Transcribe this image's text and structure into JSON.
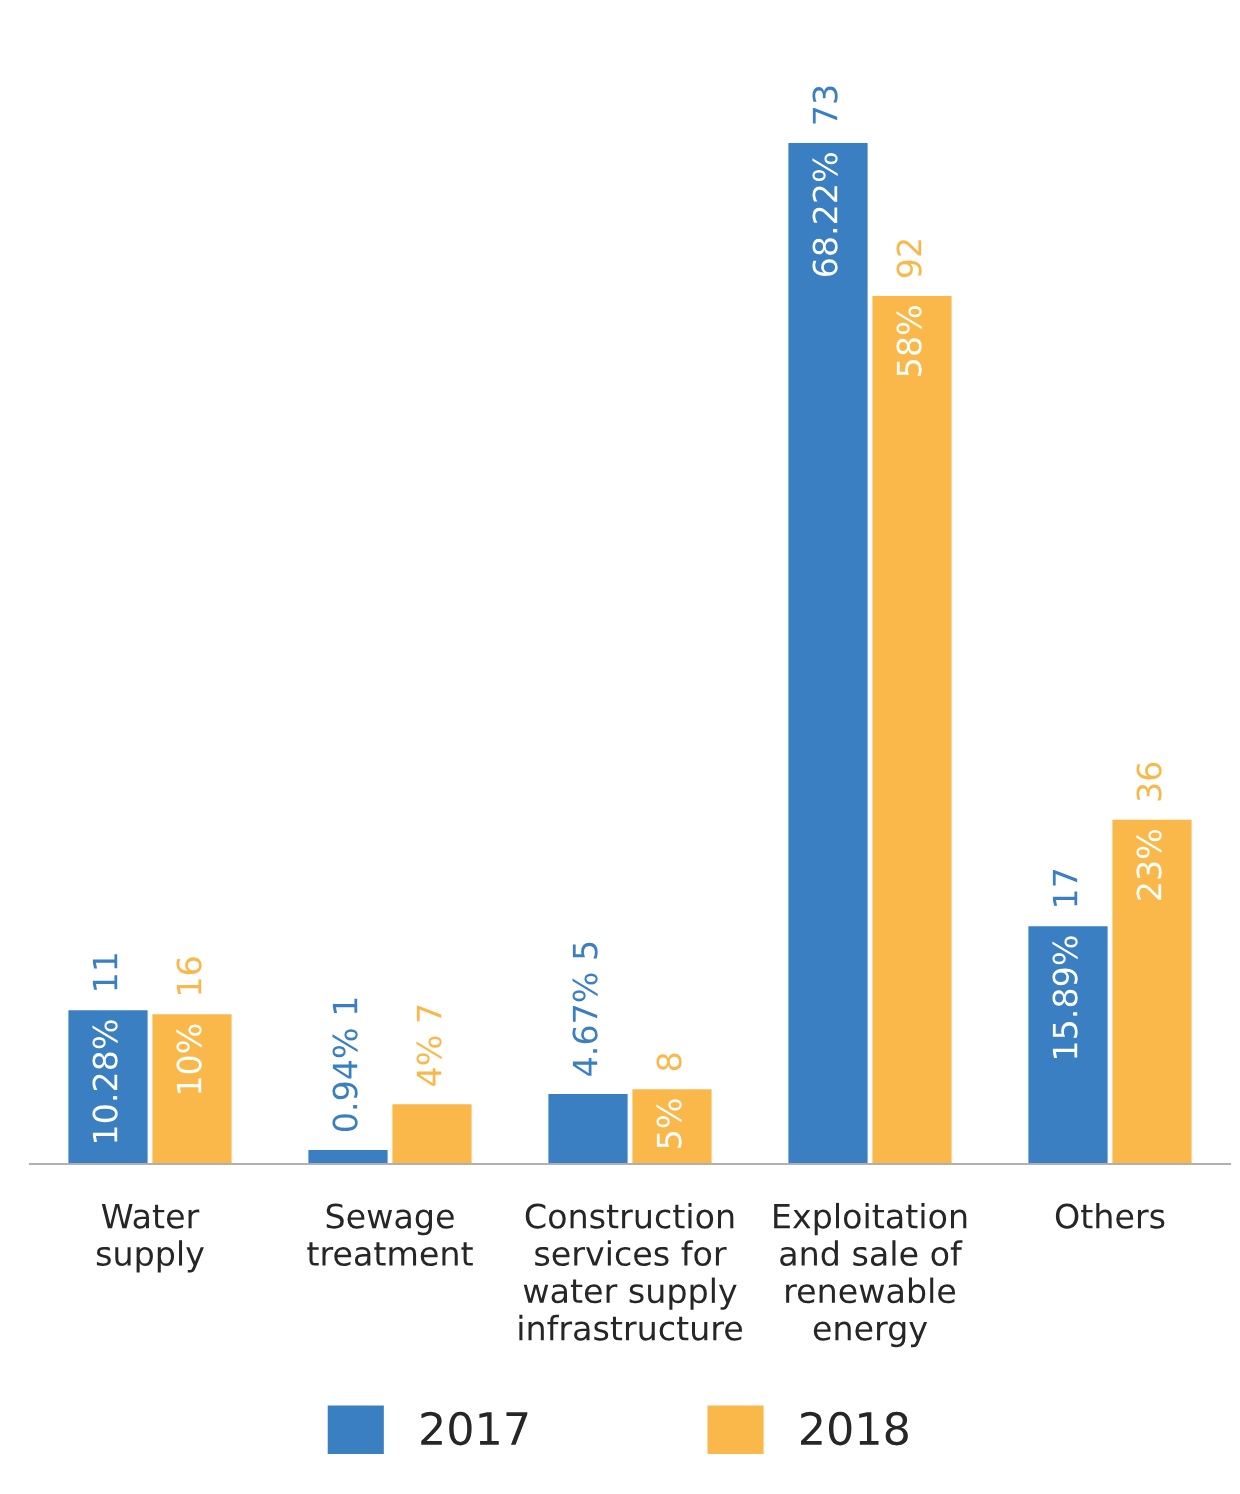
{
  "chart_data": {
    "type": "bar",
    "categories": [
      "Water\nsupply",
      "Sewage\ntreatment",
      "Construction\nservices for\nwater supply\ninfrastructure",
      "Exploitation\nand sale of\nrenewable\nenergy",
      "Others"
    ],
    "series": [
      {
        "name": "2017",
        "color": "#3a7fc1",
        "values": [
          10.28,
          0.94,
          4.67,
          68.22,
          15.89
        ],
        "value_labels": [
          "10.28% 11",
          "0.94% 1",
          "4.67% 5",
          "68.22% 73",
          "15.89% 17"
        ]
      },
      {
        "name": "2018",
        "color": "#fbb84a",
        "values": [
          10,
          4,
          5,
          58,
          23
        ],
        "value_labels": [
          "10% 16",
          "4% 7",
          "5% 8",
          "58% 92",
          "23% 36"
        ]
      }
    ],
    "legend": "bottom",
    "grid": false
  }
}
